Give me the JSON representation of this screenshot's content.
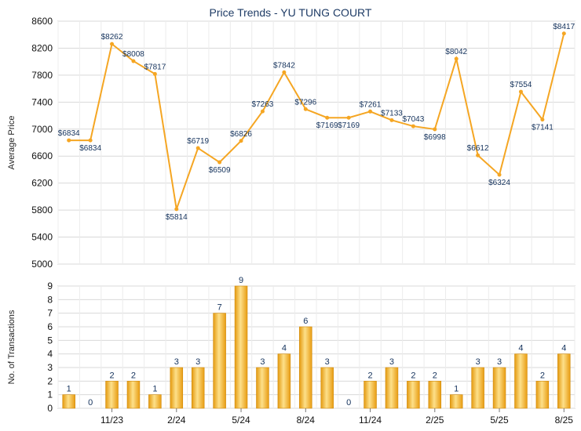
{
  "chart_data": [
    {
      "type": "line",
      "title": "Price Trends - YU TUNG COURT",
      "ylabel": "Average Price",
      "ylim": [
        5000,
        8600
      ],
      "yticks": [
        5000,
        5400,
        5800,
        6200,
        6600,
        7000,
        7400,
        7800,
        8200,
        8600
      ],
      "line_color": "#f5a623",
      "grid": true,
      "values": [
        6834,
        6834,
        8262,
        8008,
        7817,
        5814,
        6719,
        6509,
        6826,
        7263,
        7842,
        7296,
        7169,
        7169,
        7261,
        7133,
        7043,
        6998,
        8042,
        6612,
        6324,
        7554,
        7141,
        8417
      ],
      "labels": [
        "$6834",
        "$6834",
        "$8262",
        "$8008",
        "$7817",
        "$5814",
        "$6719",
        "$6509",
        "$6826",
        "$7263",
        "$7842",
        "$7296",
        "$7169",
        "$7169",
        "$7261",
        "$7133",
        "$7043",
        "$6998",
        "$8042",
        "$6612",
        "$6324",
        "$7554",
        "$7141",
        "$8417"
      ]
    },
    {
      "type": "bar",
      "ylabel": "No. of Transactions",
      "ylim": [
        0,
        9
      ],
      "yticks": [
        0,
        1,
        2,
        3,
        4,
        5,
        6,
        7,
        8,
        9
      ],
      "bar_color": "#f5a623",
      "grid": true,
      "values": [
        1,
        0,
        2,
        2,
        1,
        3,
        3,
        7,
        9,
        3,
        4,
        6,
        3,
        0,
        2,
        3,
        2,
        2,
        1,
        3,
        3,
        4,
        2,
        4
      ],
      "x_tick_labels": [
        "11/23",
        "2/24",
        "5/24",
        "8/24",
        "11/24",
        "2/25",
        "5/25",
        "8/25"
      ],
      "x_tick_positions": [
        2,
        5,
        8,
        11,
        14,
        17,
        20,
        23
      ]
    }
  ]
}
